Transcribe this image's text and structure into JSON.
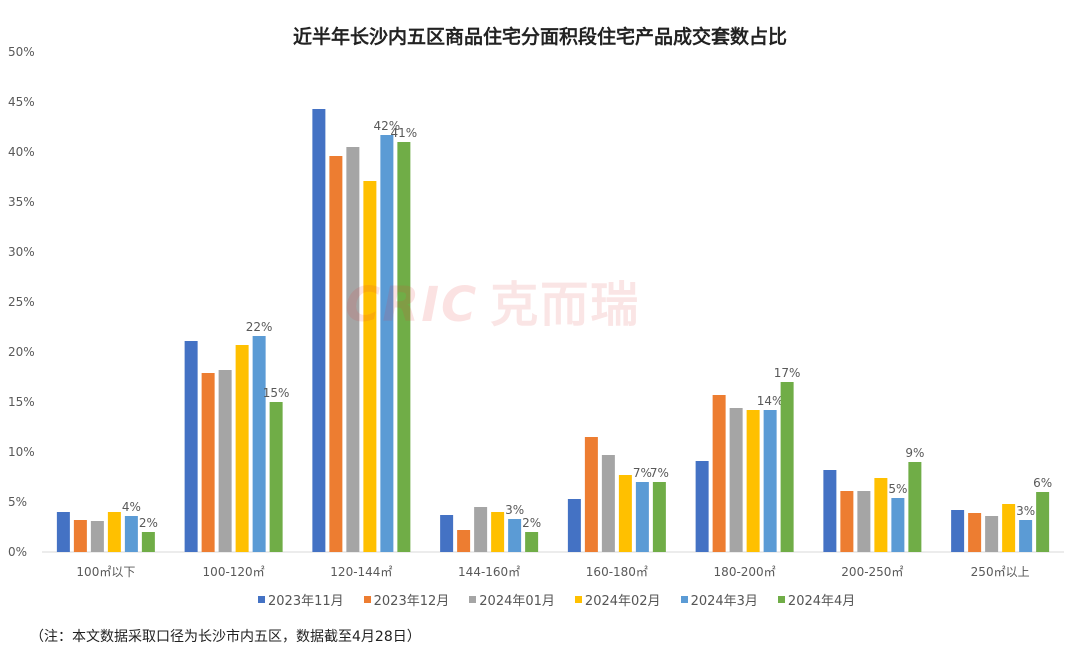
{
  "chart_data": {
    "type": "bar",
    "title": "近半年长沙内五区商品住宅分面积段住宅产品成交套数占比",
    "xlabel": "",
    "ylabel": "",
    "ylim": [
      0,
      50
    ],
    "yticks": [
      "0%",
      "5%",
      "10%",
      "15%",
      "20%",
      "25%",
      "30%",
      "35%",
      "40%",
      "45%",
      "50%"
    ],
    "categories": [
      "100㎡以下",
      "100-120㎡",
      "120-144㎡",
      "144-160㎡",
      "160-180㎡",
      "180-200㎡",
      "200-250㎡",
      "250㎡以上"
    ],
    "series": [
      {
        "name": "2023年11月",
        "color": "#4472C4",
        "values": [
          4.0,
          21.1,
          44.3,
          3.7,
          5.3,
          9.1,
          8.2,
          4.2
        ]
      },
      {
        "name": "2023年12月",
        "color": "#ED7D31",
        "values": [
          3.2,
          17.9,
          39.6,
          2.2,
          11.5,
          15.7,
          6.1,
          3.9
        ]
      },
      {
        "name": "2024年01月",
        "color": "#A5A5A5",
        "values": [
          3.1,
          18.2,
          40.5,
          4.5,
          9.7,
          14.4,
          6.1,
          3.6
        ]
      },
      {
        "name": "2024年02月",
        "color": "#FFC000",
        "values": [
          4.0,
          20.7,
          37.1,
          4.0,
          7.7,
          14.2,
          7.4,
          4.8
        ]
      },
      {
        "name": "2024年3月",
        "color": "#5B9BD5",
        "values": [
          3.6,
          21.6,
          41.7,
          3.3,
          7.0,
          14.2,
          5.4,
          3.2
        ],
        "labels": [
          "4%",
          "22%",
          "42%",
          "3%",
          "7%",
          "14%",
          "5%",
          "3%"
        ]
      },
      {
        "name": "2024年4月",
        "color": "#70AD47",
        "values": [
          2.0,
          15.0,
          41.0,
          2.0,
          7.0,
          17.0,
          9.0,
          6.0
        ],
        "labels": [
          "2%",
          "15%",
          "41%",
          "2%",
          "7%",
          "17%",
          "9%",
          "6%"
        ]
      }
    ],
    "grid": false,
    "legend": "bottom"
  },
  "watermark": {
    "brand": "CRIC",
    "cn": "克而瑞"
  },
  "note": "（注：本文数据采取口径为长沙市内五区，数据截至4月28日）"
}
